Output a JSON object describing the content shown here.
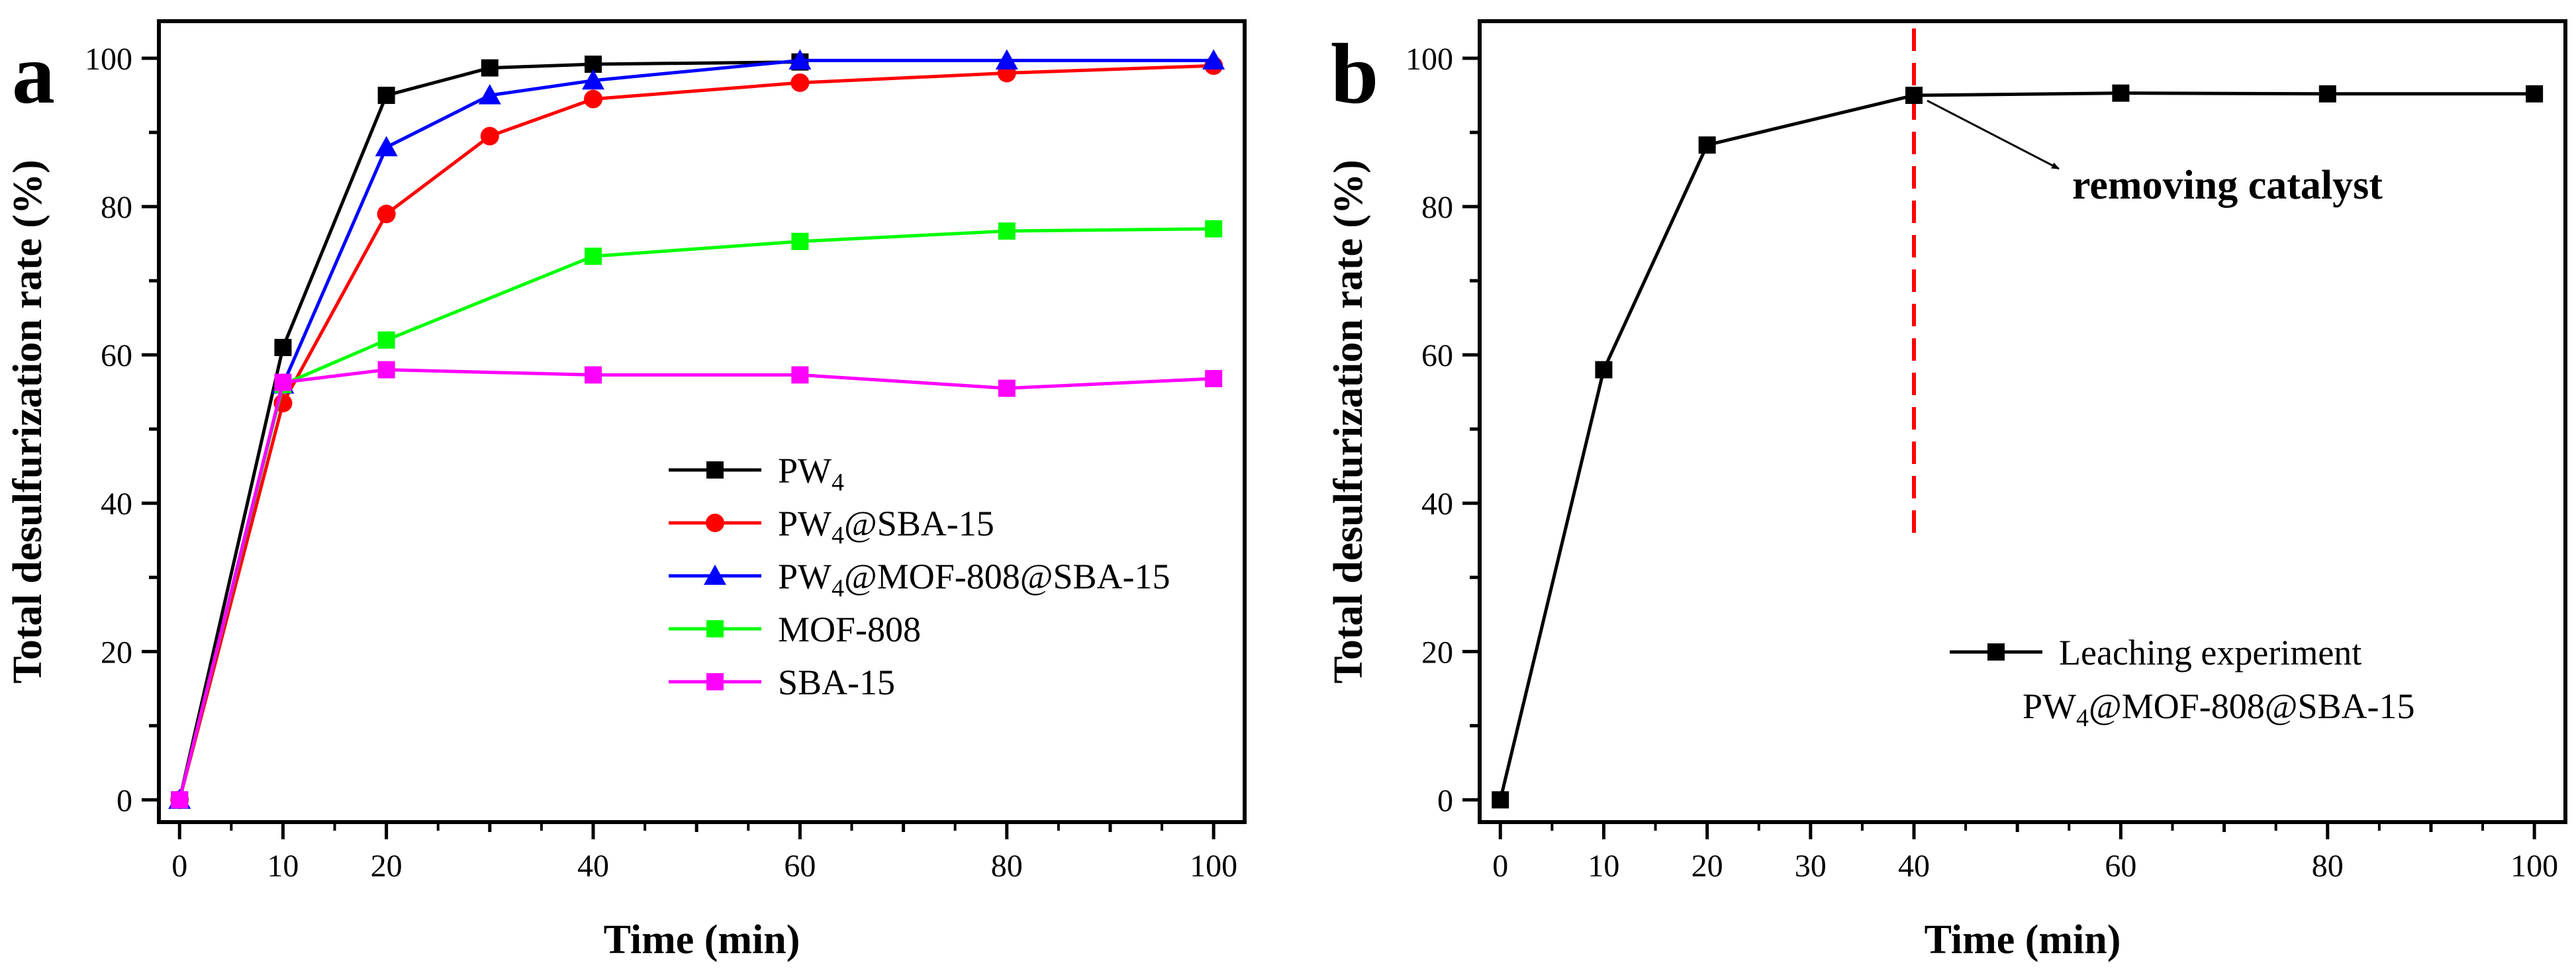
{
  "chart_data": [
    {
      "type": "line",
      "panel_label": "a",
      "xlabel": "Time (min)",
      "ylabel": "Total desulfurization rate (%)",
      "xlim": [
        -2,
        103
      ],
      "ylim": [
        -3,
        105
      ],
      "xticks": [
        0,
        10,
        20,
        40,
        60,
        80,
        100
      ],
      "yticks": [
        0,
        20,
        40,
        60,
        80,
        100
      ],
      "legend_position": "lower-right",
      "series": [
        {
          "name": "PW4",
          "label_main": "PW",
          "label_sub": "4",
          "label_rest": "",
          "color": "#000000",
          "marker": "square",
          "x": [
            0,
            10,
            20,
            30,
            40,
            60
          ],
          "y": [
            0,
            61,
            95,
            98.7,
            99.2,
            99.5
          ]
        },
        {
          "name": "PW4@SBA-15",
          "label_main": "PW",
          "label_sub": "4",
          "label_rest": "@SBA-15",
          "color": "#ff0000",
          "marker": "circle",
          "x": [
            0,
            10,
            20,
            30,
            40,
            60,
            80,
            100
          ],
          "y": [
            0,
            53.5,
            79,
            89.5,
            94.5,
            96.7,
            98,
            99
          ]
        },
        {
          "name": "PW4@MOF-808@SBA-15",
          "label_main": "PW",
          "label_sub": "4",
          "label_rest": "@MOF-808@SBA-15",
          "color": "#0000ff",
          "marker": "triangle",
          "x": [
            0,
            10,
            20,
            30,
            40,
            60,
            80,
            100
          ],
          "y": [
            0,
            56,
            88,
            95,
            97,
            99.7,
            99.7,
            99.7
          ]
        },
        {
          "name": "MOF-808",
          "label_main": "MOF-808",
          "label_sub": "",
          "label_rest": "",
          "color": "#00ff00",
          "marker": "square",
          "x": [
            0,
            10,
            20,
            40,
            60,
            80,
            100
          ],
          "y": [
            0,
            56,
            62,
            73.3,
            75.3,
            76.7,
            77
          ]
        },
        {
          "name": "SBA-15",
          "label_main": "SBA-15",
          "label_sub": "",
          "label_rest": "",
          "color": "#ff00ff",
          "marker": "square",
          "x": [
            0,
            10,
            20,
            40,
            60,
            80,
            100
          ],
          "y": [
            0,
            56.3,
            58,
            57.3,
            57.3,
            55.5,
            56.8
          ]
        }
      ]
    },
    {
      "type": "line",
      "panel_label": "b",
      "xlabel": "Time (min)",
      "ylabel": "Total desulfurization rate (%)",
      "xlim": [
        -2,
        103
      ],
      "ylim": [
        -3,
        105
      ],
      "xticks": [
        0,
        10,
        20,
        30,
        40,
        60,
        80,
        100
      ],
      "yticks": [
        0,
        20,
        40,
        60,
        80,
        100
      ],
      "legend_position": "lower-right",
      "series": [
        {
          "name": "Leaching experiment PW4@MOF-808@SBA-15",
          "label_line1": "Leaching experiment",
          "label_main": "PW",
          "label_sub": "4",
          "label_rest": "@MOF-808@SBA-15",
          "color": "#000000",
          "marker": "square",
          "x": [
            0,
            10,
            20,
            40,
            60,
            80,
            100
          ],
          "y": [
            0,
            58,
            88.3,
            95,
            95.3,
            95.2,
            95.2
          ]
        }
      ],
      "vline": {
        "x": 40,
        "y_from": 36,
        "y_to": 105,
        "color": "#ff0000",
        "style": "dashed"
      },
      "annotation": {
        "text": "removing catalyst",
        "arrow_from_x": 40,
        "arrow_from_y": 95
      }
    }
  ]
}
